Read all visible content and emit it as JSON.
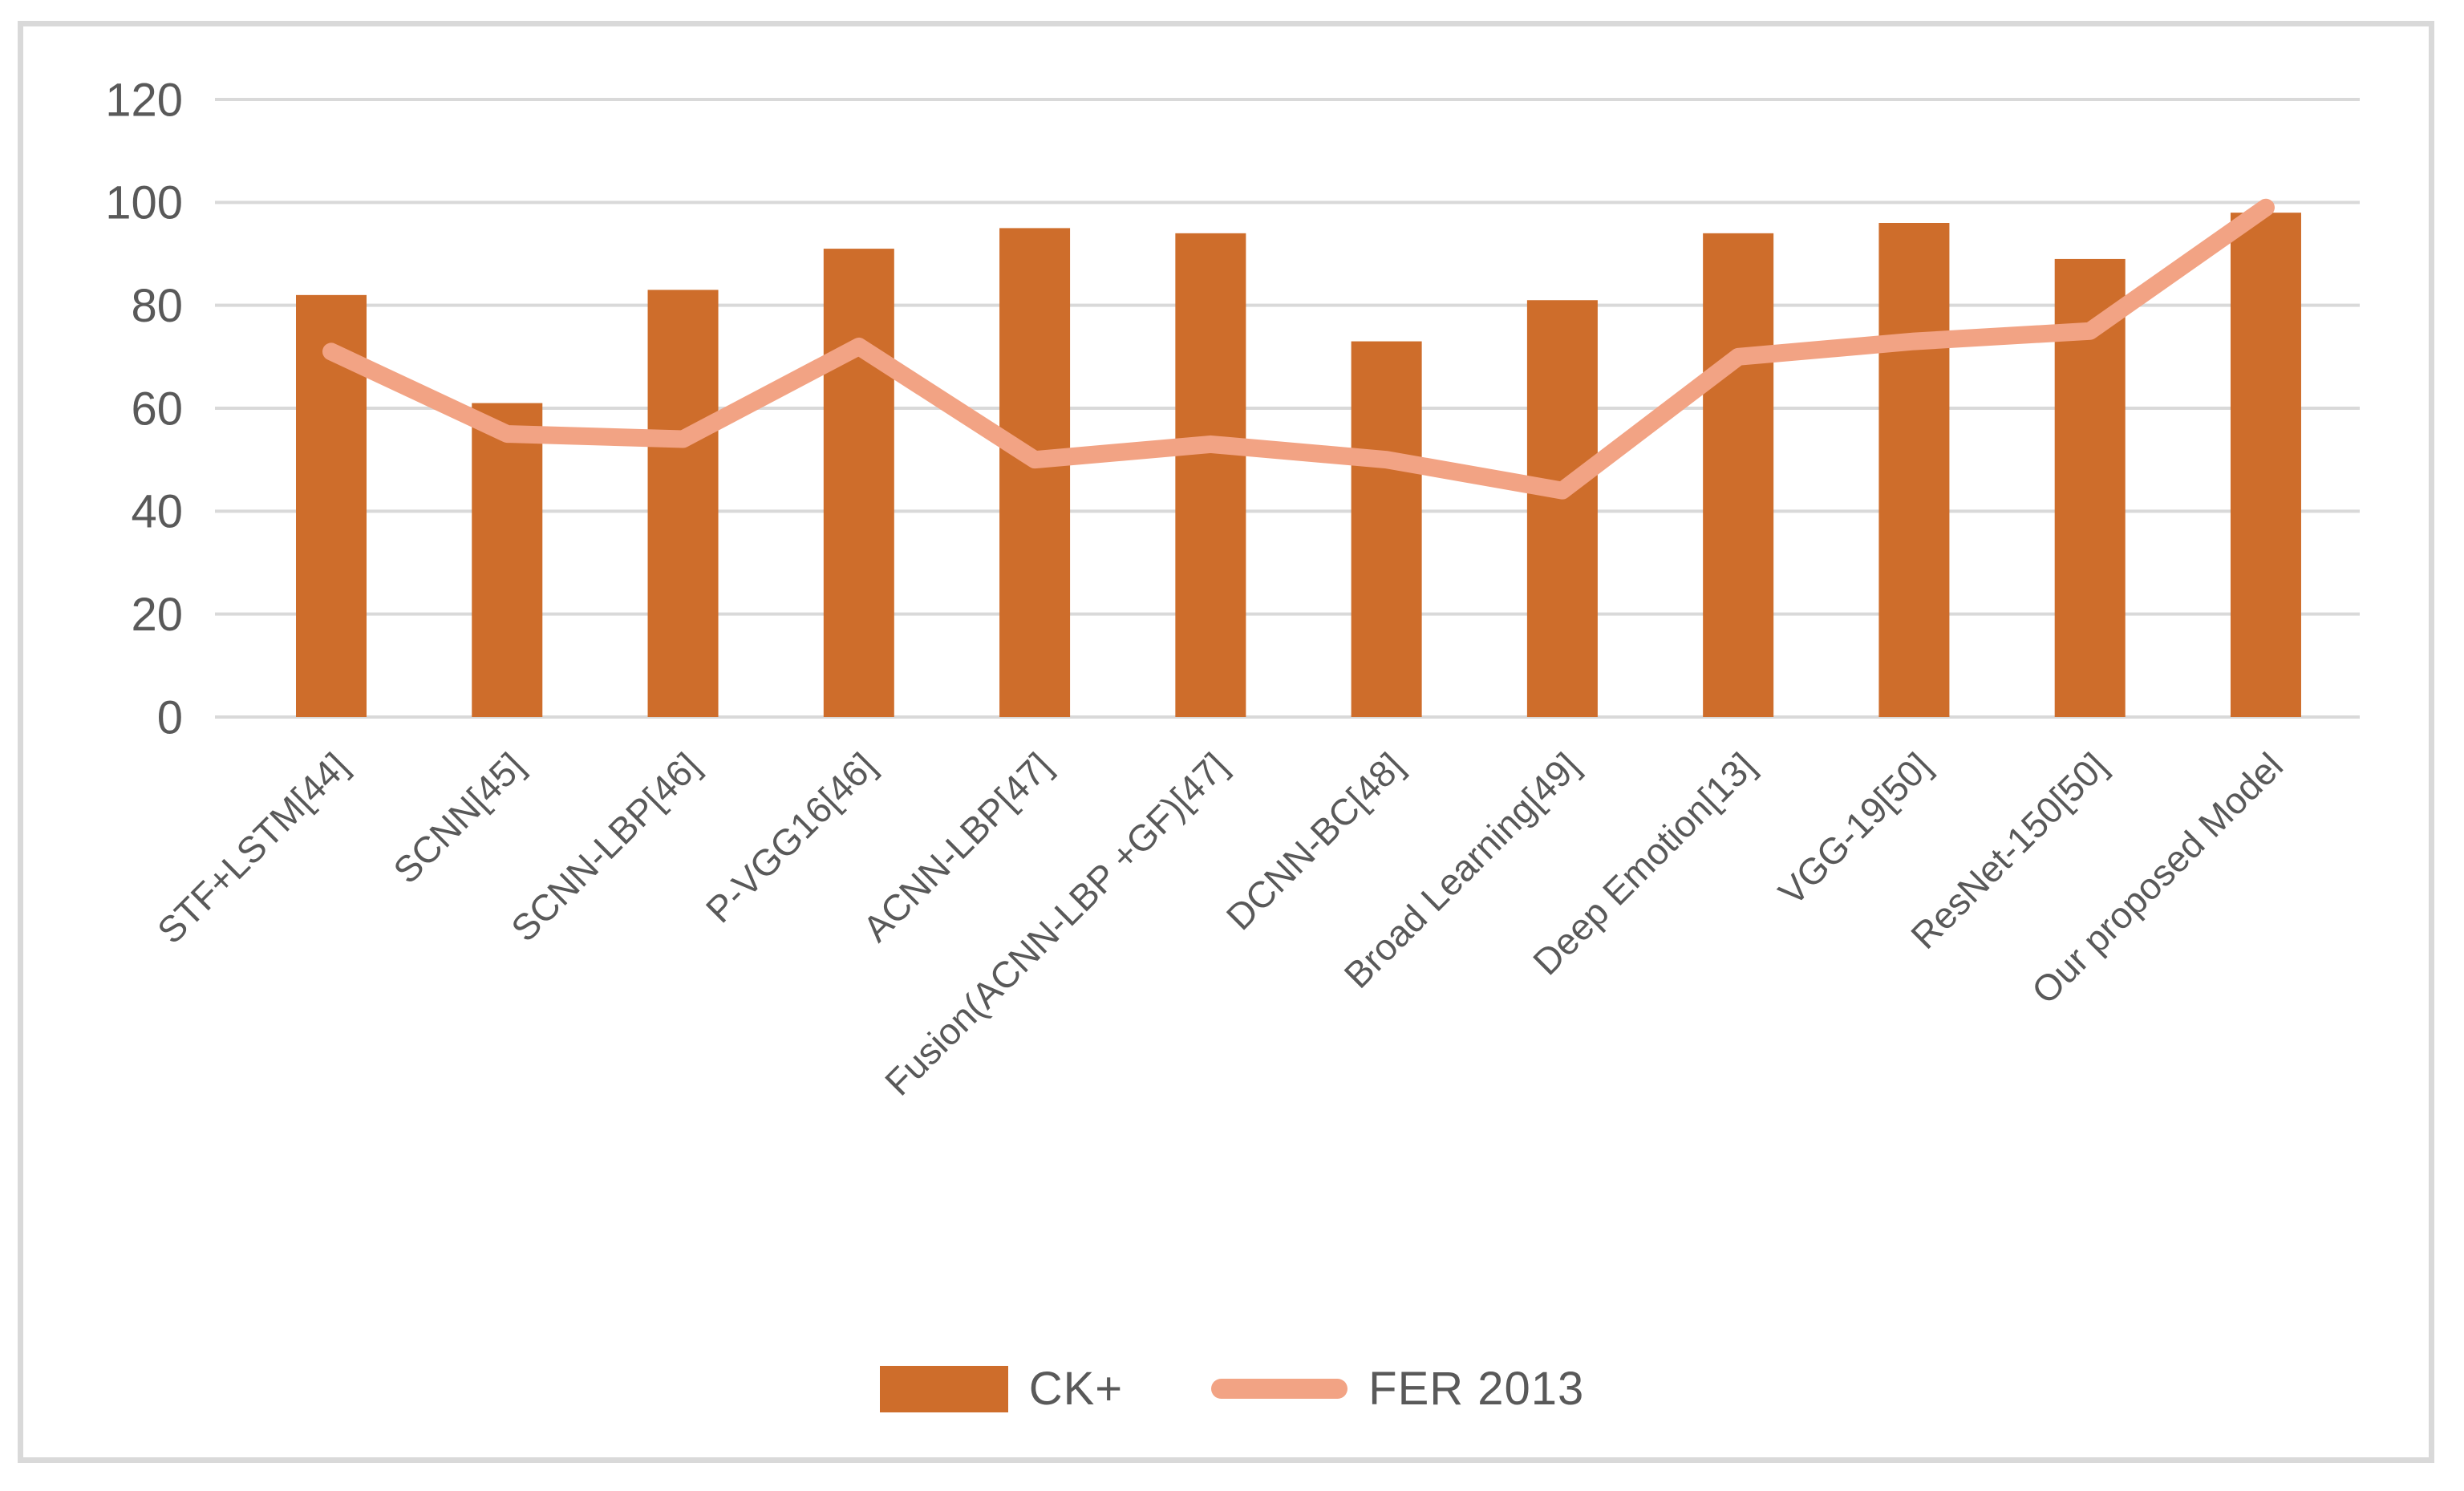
{
  "figure": {
    "background": "#ffffff",
    "border_color": "#d9d9d9"
  },
  "chart_data": {
    "type": "bar",
    "subtype": "bar-and-line-combo",
    "title": "",
    "xlabel": "",
    "ylabel": "",
    "categories": [
      "STF+LSTM[44]",
      "SCNN[45]",
      "SCNN-LBP[46]",
      "P-VGG16[46]",
      "ACNN-LBP[47]",
      "Fusion(ACNN-LBP +GF)[47]",
      "DCNN-BC[48]",
      "Broad Learning[49]",
      "Deep Emotion[13]",
      "VGG-19[50]",
      "ResNet-150[50]",
      "Our proposed Model"
    ],
    "series": [
      {
        "name": "CK+",
        "type": "bar",
        "color": "#ce6d2b",
        "values": [
          82,
          61,
          83,
          91,
          95,
          94,
          73,
          81,
          94,
          96,
          89,
          98
        ]
      },
      {
        "name": "FER 2013",
        "type": "line",
        "color": "#f2a384",
        "values": [
          71,
          55,
          54,
          72,
          50,
          53,
          50,
          44,
          70,
          73,
          75,
          99
        ]
      }
    ],
    "ylim": [
      0,
      120
    ],
    "yticks": [
      0,
      20,
      40,
      60,
      80,
      100,
      120
    ],
    "grid": true,
    "gridline_color": "#d9d9d9",
    "axis_text_color": "#595959",
    "legend_position": "bottom",
    "x_tick_rotation_deg": 45
  }
}
